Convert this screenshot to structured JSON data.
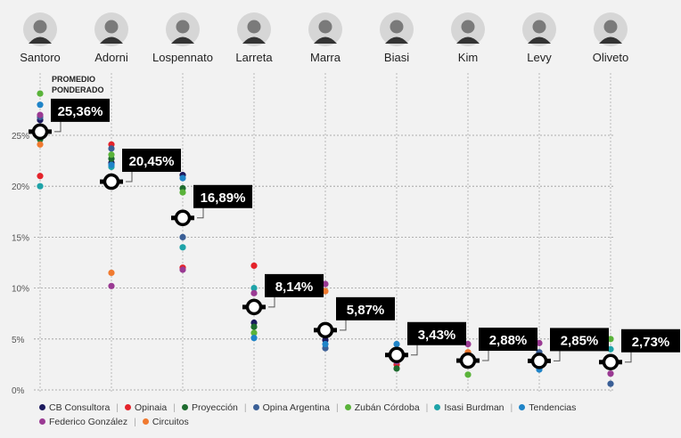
{
  "chart_data": {
    "type": "scatter",
    "title": "",
    "annotation": "PROMEDIO PONDERADO",
    "ylim": [
      0,
      30
    ],
    "yticks": [
      0,
      5,
      10,
      15,
      20,
      25
    ],
    "ytick_labels": [
      "0%",
      "5%",
      "10%",
      "15%",
      "20%",
      "25%"
    ],
    "grid": true,
    "candidates": [
      "Santoro",
      "Adorni",
      "Lospennato",
      "Larreta",
      "Marra",
      "Biasi",
      "Kim",
      "Levy",
      "Oliveto"
    ],
    "weighted_average": [
      25.36,
      20.45,
      16.89,
      8.14,
      5.87,
      3.43,
      2.88,
      2.85,
      2.73
    ],
    "weighted_average_labels": [
      "25,36%",
      "20,45%",
      "16,89%",
      "8,14%",
      "5,87%",
      "3,43%",
      "2,88%",
      "2,85%",
      "2,73%"
    ],
    "series": [
      {
        "name": "CB Consultora",
        "color": "#1c1a5e",
        "values": [
          26.5,
          22.3,
          21.1,
          6.6,
          4.9,
          null,
          2.7,
          null,
          null
        ]
      },
      {
        "name": "Opinaia",
        "color": "#e4232b",
        "values": [
          21.0,
          24.1,
          12.0,
          12.2,
          5.9,
          2.5,
          null,
          null,
          3.0
        ]
      },
      {
        "name": "Proyección",
        "color": "#1e6b2f",
        "values": [
          24.6,
          22.7,
          19.8,
          6.2,
          null,
          2.1,
          null,
          null,
          null
        ]
      },
      {
        "name": "Opina Argentina",
        "color": "#3a5f96",
        "values": [
          26.8,
          23.7,
          15.0,
          null,
          4.1,
          null,
          null,
          3.7,
          0.6
        ]
      },
      {
        "name": "Zubán Córdoba",
        "color": "#5ab33a",
        "values": [
          29.1,
          23.1,
          19.4,
          5.6,
          null,
          null,
          1.5,
          null,
          5.0
        ]
      },
      {
        "name": "Isasi Burdman",
        "color": "#1ea3a8",
        "values": [
          20.0,
          21.9,
          14.0,
          10.0,
          null,
          null,
          null,
          null,
          4.0
        ]
      },
      {
        "name": "Tendencias",
        "color": "#1f84c8",
        "values": [
          28.0,
          22.1,
          20.8,
          5.1,
          4.5,
          4.5,
          null,
          2.0,
          null
        ]
      },
      {
        "name": "Federico González",
        "color": "#9a3a93",
        "values": [
          27.0,
          10.2,
          11.8,
          9.5,
          10.4,
          2.8,
          4.5,
          4.6,
          1.6
        ]
      },
      {
        "name": "Circuitos",
        "color": "#f07a30",
        "values": [
          24.1,
          11.5,
          null,
          null,
          9.7,
          null,
          3.7,
          null,
          null
        ]
      }
    ]
  }
}
